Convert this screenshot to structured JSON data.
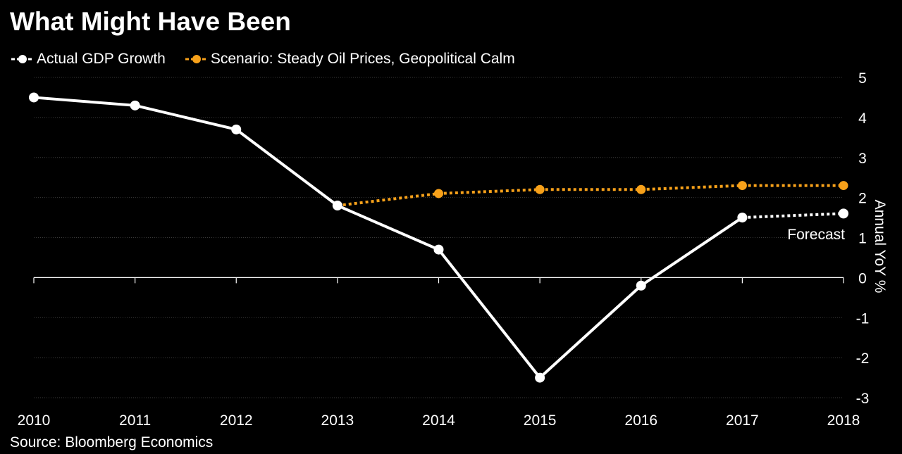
{
  "chart_data": {
    "type": "line",
    "title": "What Might Have Been",
    "categories": [
      "2010",
      "2011",
      "2012",
      "2013",
      "2014",
      "2015",
      "2016",
      "2017",
      "2018"
    ],
    "series": [
      {
        "name": "Actual GDP Growth",
        "color": "#ffffff",
        "style": "solid-with-dotted-forecast",
        "values": [
          4.5,
          4.3,
          3.7,
          1.8,
          0.7,
          -2.5,
          -0.2,
          1.5,
          1.6
        ]
      },
      {
        "name": "Scenario: Steady Oil Prices, Geopolitical Calm",
        "color": "#f7a11a",
        "style": "dotted",
        "values": [
          null,
          null,
          null,
          1.8,
          2.1,
          2.2,
          2.2,
          2.3,
          2.3
        ]
      }
    ],
    "ylabel": "Annual YoY %",
    "ylim": [
      -3,
      5
    ],
    "yticks": [
      "5",
      "4",
      "3",
      "2",
      "1",
      "0",
      "-1",
      "-2",
      "-3"
    ],
    "y_axis_side": "right",
    "grid": true,
    "legend_position": "top-left",
    "annotation": "Forecast",
    "forecast_from": "2017",
    "source": "Source: Bloomberg Economics"
  }
}
